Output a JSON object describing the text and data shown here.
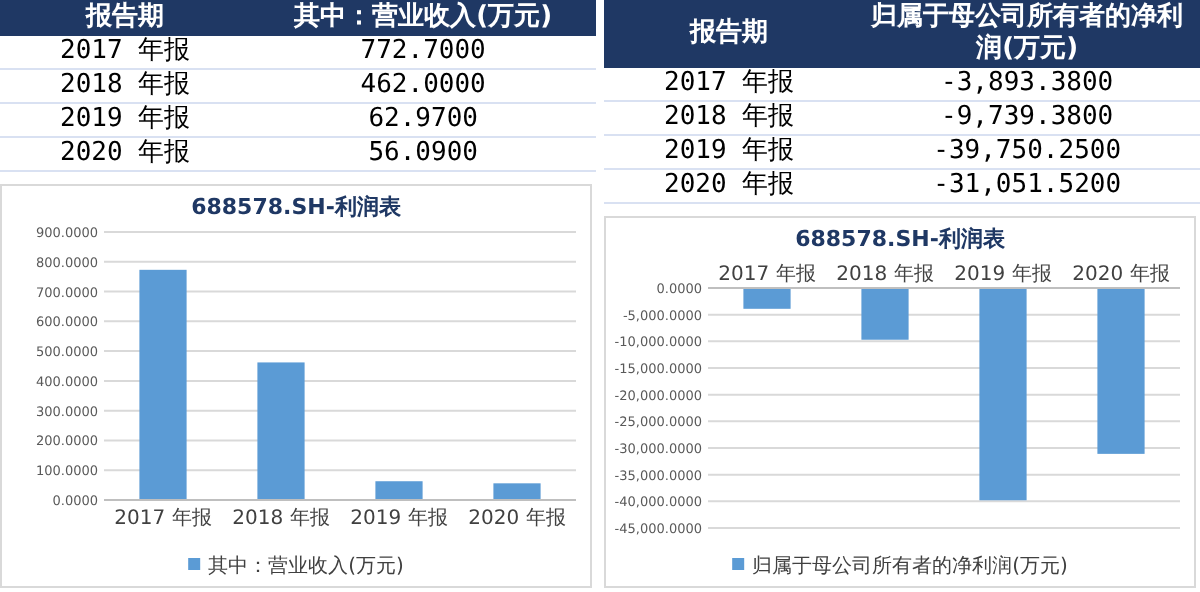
{
  "chart_data": [
    {
      "type": "bar",
      "title": "688578.SH-利润表",
      "categories": [
        "2017 年报",
        "2018 年报",
        "2019 年报",
        "2020 年报"
      ],
      "annotations": [
        "报告期",
        "其中：营业收入(万元)",
        "2017 年报",
        "772.7000",
        "2018 年报",
        "462.0000",
        "2019 年报",
        "62.9700",
        "2020 年报",
        "56.0900"
      ],
      "series": [
        {
          "name": "其中：营业收入(万元)",
          "color": "#5b9bd5",
          "values": [
            773,
            462,
            63,
            56
          ]
        }
      ],
      "ylim": [
        0,
        900
      ],
      "yticks": [
        {
          "value": 0,
          "label": "0.0000"
        },
        {
          "value": 100,
          "label": "100.0000"
        },
        {
          "value": 200,
          "label": "200.0000"
        },
        {
          "value": 300,
          "label": "300.0000"
        },
        {
          "value": 400,
          "label": "400.0000"
        },
        {
          "value": 500,
          "label": "500.0000"
        },
        {
          "value": 600,
          "label": "600.0000"
        },
        {
          "value": 700,
          "label": "700.0000"
        },
        {
          "value": 800,
          "label": "800.0000"
        },
        {
          "value": 900,
          "label": "900.0000"
        }
      ],
      "grid": "y",
      "legend": "bottom"
    },
    {
      "type": "bar",
      "title": "688578.SH-利润表",
      "categories": [
        "2017 年报",
        "2018 年报",
        "2019 年报",
        "2020 年报"
      ],
      "annotations": [
        "报告期",
        "归属于母公司所有者的净利润(万元)",
        "2017 年报",
        "-3,893.3800",
        "2018 年报",
        "-9,739.3800",
        "2019 年报",
        "-39,750.2500",
        "2020 年报",
        "-31,051.5200"
      ],
      "series": [
        {
          "name": "归属于母公司所有者的净利润(万元)",
          "color": "#5b9bd5",
          "values": [
            -3900,
            -9700,
            -39800,
            -31100
          ]
        }
      ],
      "ylim": [
        -45000,
        0
      ],
      "yticks": [
        {
          "value": 0,
          "label": "0.0000"
        },
        {
          "value": -5000,
          "label": "-5,000.0000"
        },
        {
          "value": -10000,
          "label": "-10,000.0000"
        },
        {
          "value": -15000,
          "label": "-15,000.0000"
        },
        {
          "value": -20000,
          "label": "-20,000.0000"
        },
        {
          "value": -25000,
          "label": "-25,000.0000"
        },
        {
          "value": -30000,
          "label": "-30,000.0000"
        },
        {
          "value": -35000,
          "label": "-35,000.0000"
        },
        {
          "value": -40000,
          "label": "-40,000.0000"
        },
        {
          "value": -45000,
          "label": "-45,000.0000"
        }
      ],
      "grid": "y",
      "legend": "bottom"
    }
  ]
}
